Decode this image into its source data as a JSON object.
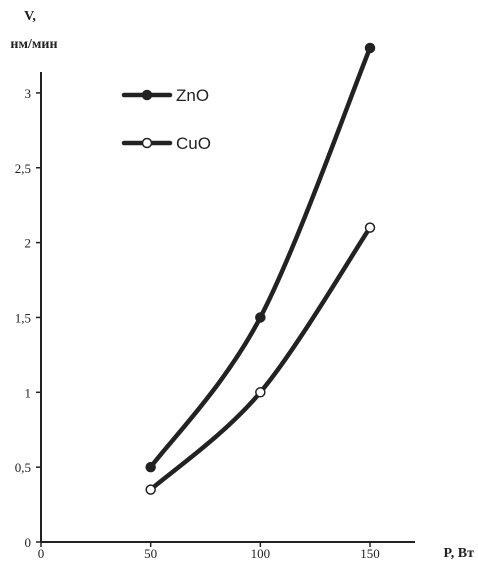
{
  "chart_data": {
    "type": "line",
    "ylabel_line1": "V,",
    "ylabel_line2": "нм/мин",
    "xlabel": "P, Вт",
    "x": [
      50,
      100,
      150
    ],
    "xlim": [
      0,
      150
    ],
    "ylim": [
      0,
      3.3
    ],
    "xticks": [
      0,
      50,
      100,
      150
    ],
    "xtick_labels": [
      "0",
      "50",
      "100",
      "150"
    ],
    "yticks": [
      0,
      0.5,
      1,
      1.5,
      2,
      2.5,
      3
    ],
    "ytick_labels": [
      "0",
      "0,5",
      "1",
      "1,5",
      "2",
      "2,5",
      "3"
    ],
    "grid": false,
    "legend": "top-left",
    "colors": {
      "line": "#222222",
      "filled_marker": "#222222",
      "hollow_marker": "#ffffff"
    },
    "series": [
      {
        "name": "ZnO",
        "marker": "filled",
        "values": [
          0.5,
          1.5,
          3.3
        ]
      },
      {
        "name": "CuO",
        "marker": "hollow",
        "values": [
          0.35,
          1.0,
          2.1
        ]
      }
    ]
  }
}
